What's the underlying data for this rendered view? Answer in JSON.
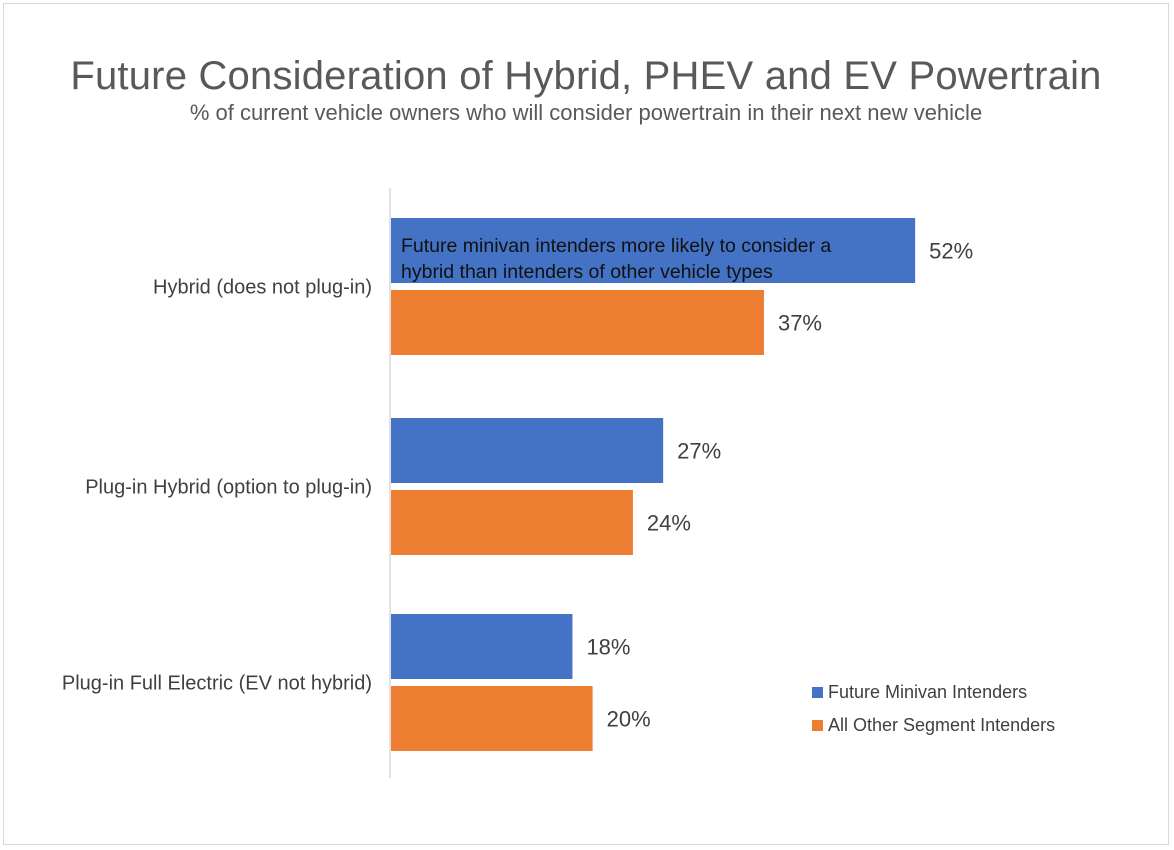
{
  "chart_data": {
    "type": "bar",
    "orientation": "horizontal",
    "title": "Future Consideration of Hybrid, PHEV and EV Powertrain",
    "subtitle": "% of current vehicle owners who will consider powertrain in their next new vehicle",
    "categories": [
      "Hybrid (does not plug-in)",
      "Plug-in Hybrid (option to plug-in)",
      "Plug-in Full Electric (EV not hybrid)"
    ],
    "series": [
      {
        "name": "Future Minivan Intenders",
        "color": "#4472c4",
        "values": [
          52,
          27,
          18
        ],
        "labels": [
          "52%",
          "27%",
          "18%"
        ]
      },
      {
        "name": "All Other Segment Intenders",
        "color": "#ed7d31",
        "values": [
          37,
          24,
          20
        ],
        "labels": [
          "37%",
          "24%",
          "20%"
        ]
      }
    ],
    "annotation": "Future minivan intenders more likely to consider a\nhybrid than intenders of other vehicle types",
    "value_unit": "%",
    "xlim": [
      0,
      52
    ],
    "grid": false,
    "legend_position": "bottom-right"
  }
}
